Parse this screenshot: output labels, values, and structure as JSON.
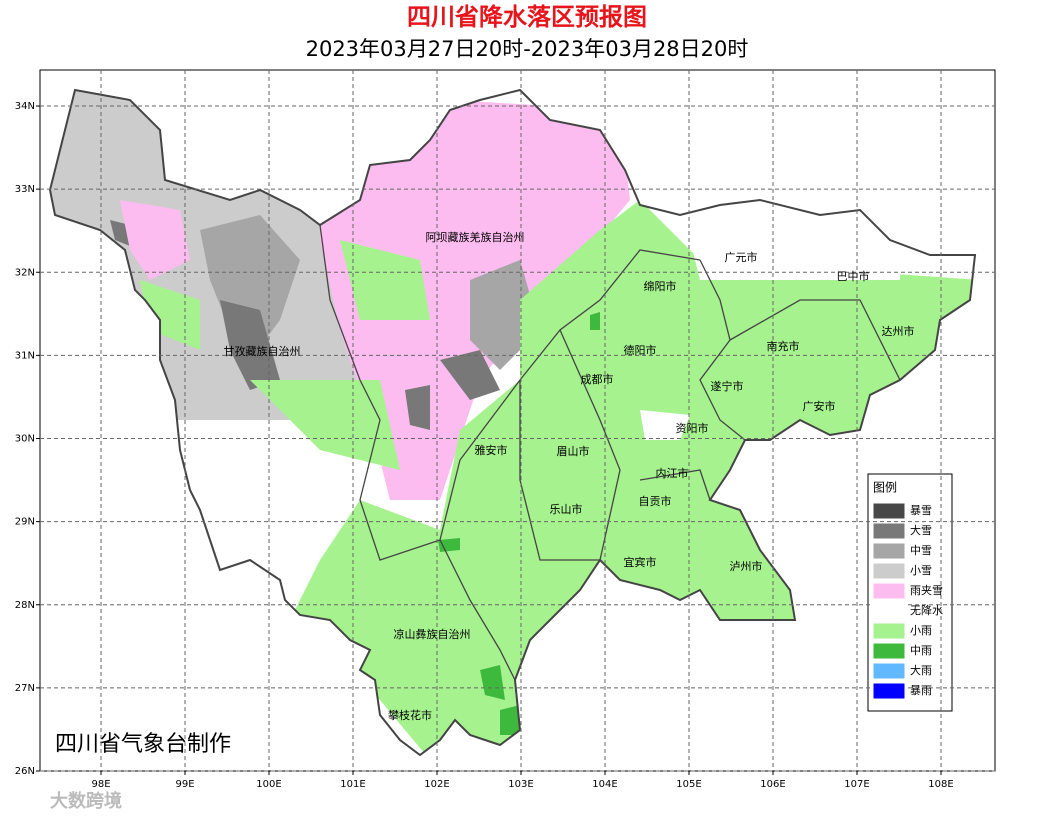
{
  "header": {
    "title": "四川省降水落区预报图",
    "subtitle": "2023年03月27日20时-2023年03月28日20时"
  },
  "map": {
    "lat_ticks": [
      {
        "value": 34,
        "label": "34N"
      },
      {
        "value": 33,
        "label": "33N"
      },
      {
        "value": 32,
        "label": "32N"
      },
      {
        "value": 31,
        "label": "31N"
      },
      {
        "value": 30,
        "label": "30N"
      },
      {
        "value": 29,
        "label": "29N"
      },
      {
        "value": 28,
        "label": "28N"
      },
      {
        "value": 27,
        "label": "27N"
      },
      {
        "value": 26,
        "label": "26N"
      }
    ],
    "lon_ticks": [
      {
        "value": 98,
        "label": "98E"
      },
      {
        "value": 99,
        "label": "99E"
      },
      {
        "value": 100,
        "label": "100E"
      },
      {
        "value": 101,
        "label": "101E"
      },
      {
        "value": 102,
        "label": "102E"
      },
      {
        "value": 103,
        "label": "103E"
      },
      {
        "value": 104,
        "label": "104E"
      },
      {
        "value": 105,
        "label": "105E"
      },
      {
        "value": 106,
        "label": "106E"
      },
      {
        "value": 107,
        "label": "107E"
      },
      {
        "value": 108,
        "label": "108E"
      }
    ],
    "places": [
      "阿坝藏族羌族自治州",
      "广元市",
      "巴中市",
      "绵阳市",
      "达州市",
      "甘孜藏族自治州",
      "德阳市",
      "南充市",
      "成都市",
      "遂宁市",
      "广安市",
      "资阳市",
      "雅安市",
      "眉山市",
      "内江市",
      "自贡市",
      "乐山市",
      "宜宾市",
      "泸州市",
      "凉山彝族自治州",
      "攀枝花市"
    ]
  },
  "legend": {
    "title": "图例",
    "items": [
      {
        "label": "暴雪",
        "color": "#474747"
      },
      {
        "label": "大雪",
        "color": "#787878"
      },
      {
        "label": "中雪",
        "color": "#a6a6a6"
      },
      {
        "label": "小雪",
        "color": "#cccccc"
      },
      {
        "label": "雨夹雪",
        "color": "#fdbcf0"
      },
      {
        "label": "无降水",
        "color": "#ffffff"
      },
      {
        "label": "小雨",
        "color": "#a6f28f"
      },
      {
        "label": "中雨",
        "color": "#3dba3d"
      },
      {
        "label": "大雨",
        "color": "#61b8ff"
      },
      {
        "label": "暴雨",
        "color": "#0000fe"
      }
    ]
  },
  "credit": "四川省气象台制作",
  "watermark": "大数跨境"
}
